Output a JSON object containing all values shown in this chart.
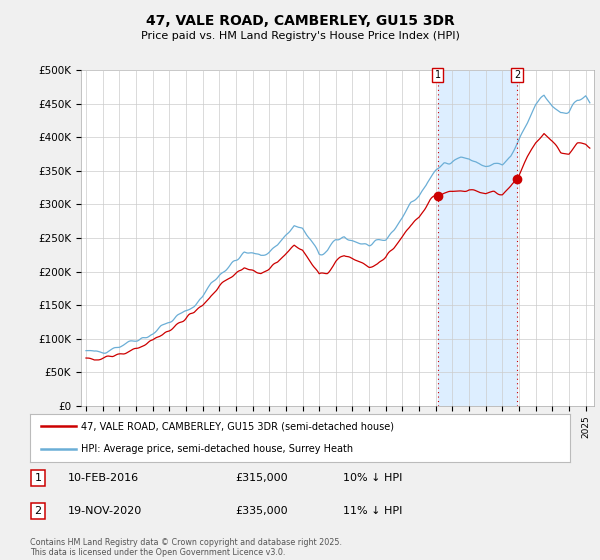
{
  "title": "47, VALE ROAD, CAMBERLEY, GU15 3DR",
  "subtitle": "Price paid vs. HM Land Registry's House Price Index (HPI)",
  "ylabel_hpi": "HPI: Average price, semi-detached house, Surrey Heath",
  "ylabel_paid": "47, VALE ROAD, CAMBERLEY, GU15 3DR (semi-detached house)",
  "hpi_color": "#6baed6",
  "paid_color": "#cc0000",
  "vline_color": "#cc0000",
  "shade_color": "#ddeeff",
  "background_color": "#f0f0f0",
  "plot_bg_color": "#ffffff",
  "ylim": [
    0,
    500000
  ],
  "yticks": [
    0,
    50000,
    100000,
    150000,
    200000,
    250000,
    300000,
    350000,
    400000,
    450000,
    500000
  ],
  "ytick_labels": [
    "£0",
    "£50K",
    "£100K",
    "£150K",
    "£200K",
    "£250K",
    "£300K",
    "£350K",
    "£400K",
    "£450K",
    "£500K"
  ],
  "xmin": 1994.7,
  "xmax": 2025.5,
  "purchase1_date": "10-FEB-2016",
  "purchase1_price": 315000,
  "purchase1_discount": "10% ↓ HPI",
  "purchase1_x": 2016.12,
  "purchase2_date": "19-NOV-2020",
  "purchase2_price": 335000,
  "purchase2_discount": "11% ↓ HPI",
  "purchase2_x": 2020.88,
  "footer": "Contains HM Land Registry data © Crown copyright and database right 2025.\nThis data is licensed under the Open Government Licence v3.0."
}
